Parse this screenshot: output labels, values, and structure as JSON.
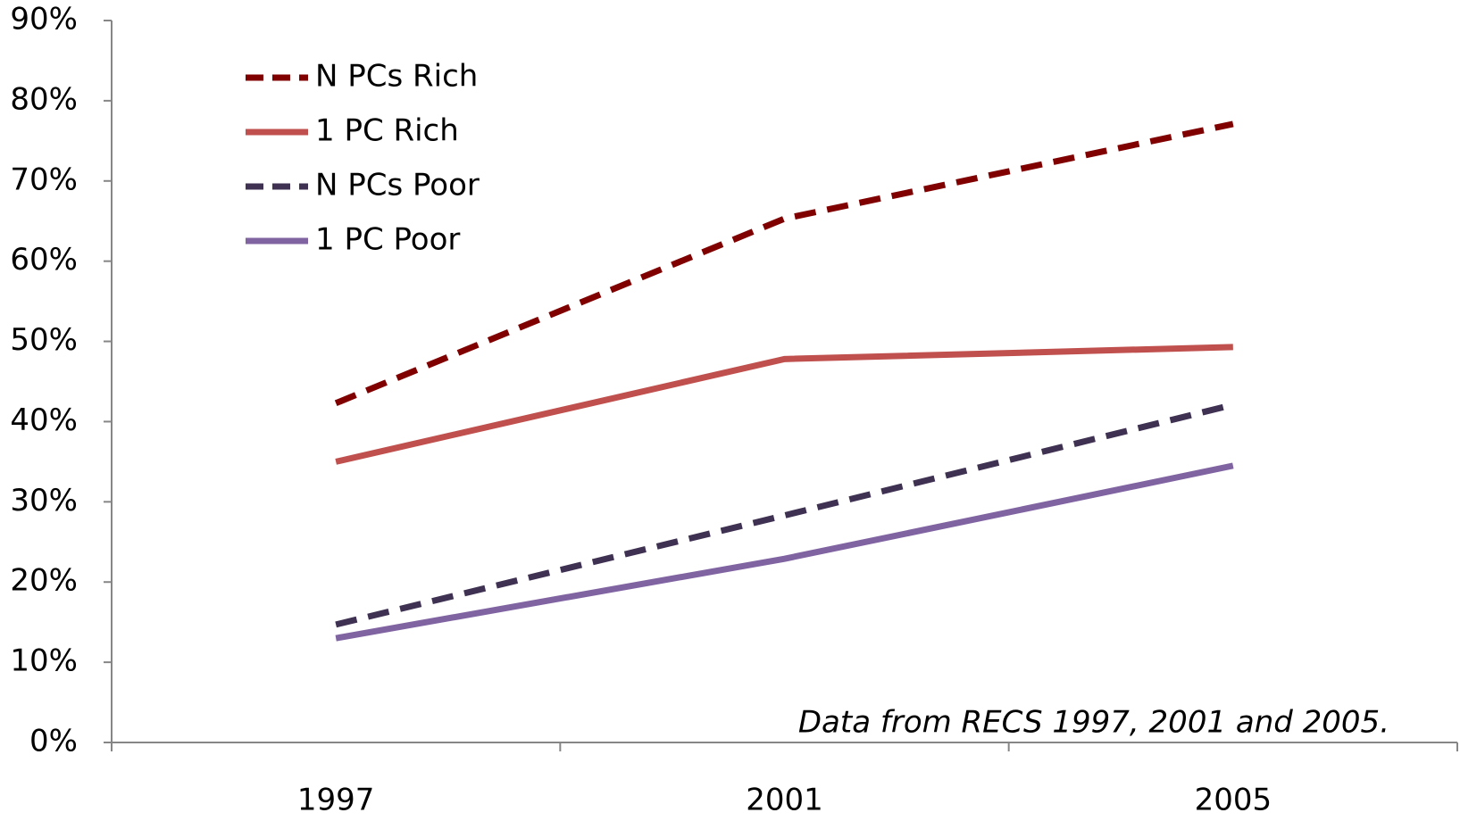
{
  "chart_data": {
    "type": "line",
    "annotation": "Data from RECS 1997, 2001 and 2005.",
    "categories": [
      "1997",
      "2001",
      "2005"
    ],
    "series": [
      {
        "name": "N PCs Rich",
        "color": "#800000",
        "style": "dashed",
        "values": [
          42.3,
          65.3,
          77.1
        ]
      },
      {
        "name": "1 PC Rich",
        "color": "#c0504d",
        "style": "solid",
        "values": [
          35.0,
          47.8,
          49.3
        ]
      },
      {
        "name": "N PCs Poor",
        "color": "#3f3151",
        "style": "dashed",
        "values": [
          14.7,
          28.3,
          42.1
        ]
      },
      {
        "name": "1 PC Poor",
        "color": "#8064a2",
        "style": "solid",
        "values": [
          13.0,
          22.9,
          34.5
        ]
      }
    ],
    "ylim": [
      0,
      90
    ],
    "yticks": [
      {
        "value": 0,
        "label": "0%"
      },
      {
        "value": 10,
        "label": "10%"
      },
      {
        "value": 20,
        "label": "20%"
      },
      {
        "value": 30,
        "label": "30%"
      },
      {
        "value": 40,
        "label": "40%"
      },
      {
        "value": 50,
        "label": "50%"
      },
      {
        "value": 60,
        "label": "60%"
      },
      {
        "value": 70,
        "label": "70%"
      },
      {
        "value": 80,
        "label": "80%"
      },
      {
        "value": 90,
        "label": "90%"
      }
    ],
    "grid": false,
    "legend": "upper left"
  }
}
